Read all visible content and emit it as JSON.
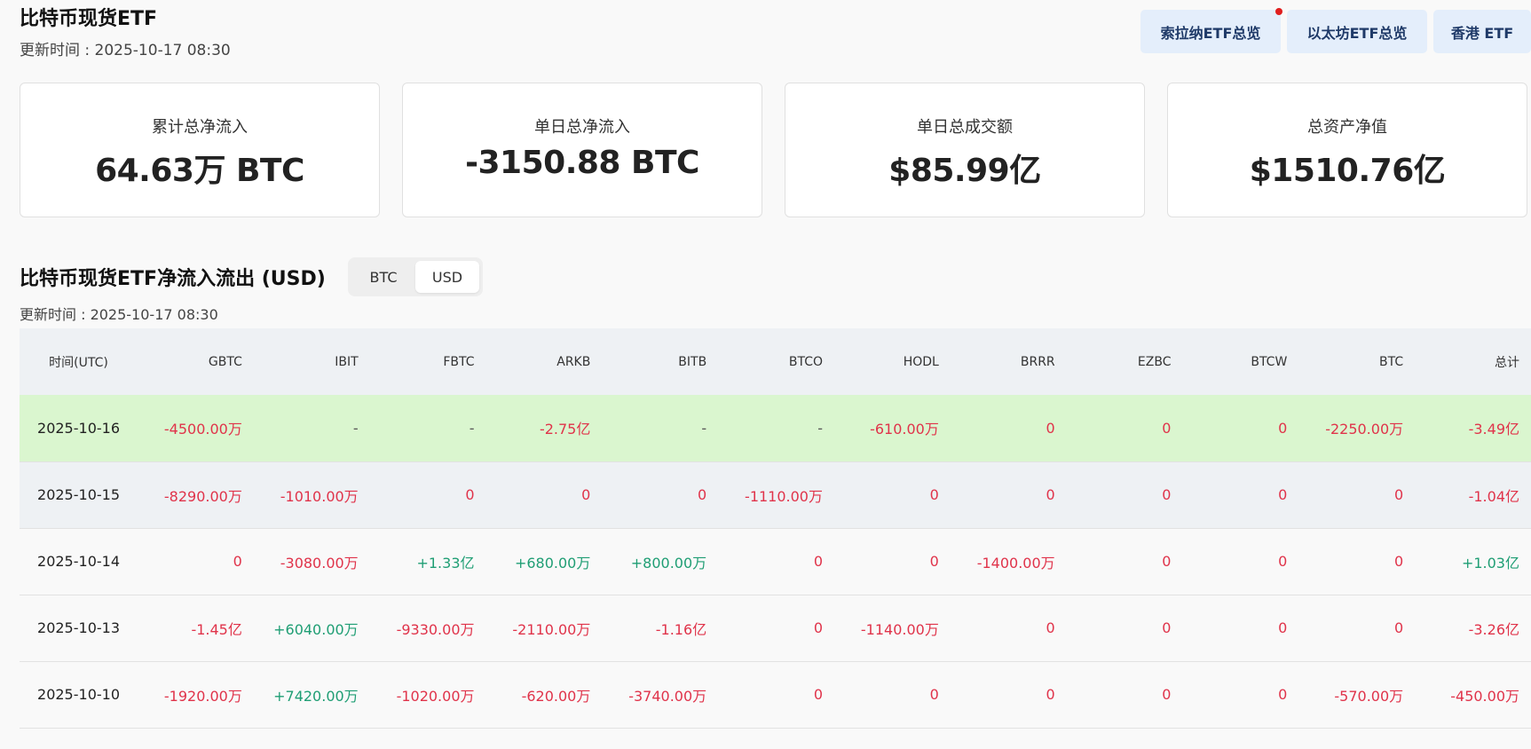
{
  "header": {
    "title": "比特币现货ETF",
    "updated": "更新时间 : 2025-10-17 08:30"
  },
  "nav_buttons": [
    {
      "label": "索拉纳ETF总览"
    },
    {
      "label": "以太坊ETF总览"
    },
    {
      "label": "香港 ETF"
    }
  ],
  "stats": [
    {
      "label": "累计总净流入",
      "value": "64.63万 BTC"
    },
    {
      "label": "单日总净流入",
      "value": "-3150.88 BTC"
    },
    {
      "label": "单日总成交额",
      "value": "$85.99亿"
    },
    {
      "label": "总资产净值",
      "value": "$1510.76亿"
    }
  ],
  "section": {
    "title": "比特币现货ETF净流入流出 (USD)",
    "updated": "更新时间 : 2025-10-17 08:30",
    "toggle": [
      "BTC",
      "USD"
    ],
    "toggle_active": "USD"
  },
  "table": {
    "columns": [
      "时间(UTC)",
      "GBTC",
      "IBIT",
      "FBTC",
      "ARKB",
      "BITB",
      "BTCO",
      "HODL",
      "BRRR",
      "EZBC",
      "BTCW",
      "BTC",
      "总计"
    ],
    "rows": [
      [
        "2025-10-16",
        "-4500.00万",
        "-",
        "-",
        "-2.75亿",
        "-",
        "-",
        "-610.00万",
        "0",
        "0",
        "0",
        "-2250.00万",
        "-3.49亿"
      ],
      [
        "2025-10-15",
        "-8290.00万",
        "-1010.00万",
        "0",
        "0",
        "0",
        "-1110.00万",
        "0",
        "0",
        "0",
        "0",
        "0",
        "-1.04亿"
      ],
      [
        "2025-10-14",
        "0",
        "-3080.00万",
        "+1.33亿",
        "+680.00万",
        "+800.00万",
        "0",
        "0",
        "-1400.00万",
        "0",
        "0",
        "0",
        "+1.03亿"
      ],
      [
        "2025-10-13",
        "-1.45亿",
        "+6040.00万",
        "-9330.00万",
        "-2110.00万",
        "-1.16亿",
        "0",
        "-1140.00万",
        "0",
        "0",
        "0",
        "0",
        "-3.26亿"
      ],
      [
        "2025-10-10",
        "-1920.00万",
        "+7420.00万",
        "-1020.00万",
        "-620.00万",
        "-3740.00万",
        "0",
        "0",
        "0",
        "0",
        "0",
        "-570.00万",
        "-450.00万"
      ]
    ]
  },
  "colors": {
    "negative": "#e0334a",
    "positive": "#1f9e74",
    "row_highlight": "#daf6cf",
    "button_bg": "#e4eefb"
  }
}
